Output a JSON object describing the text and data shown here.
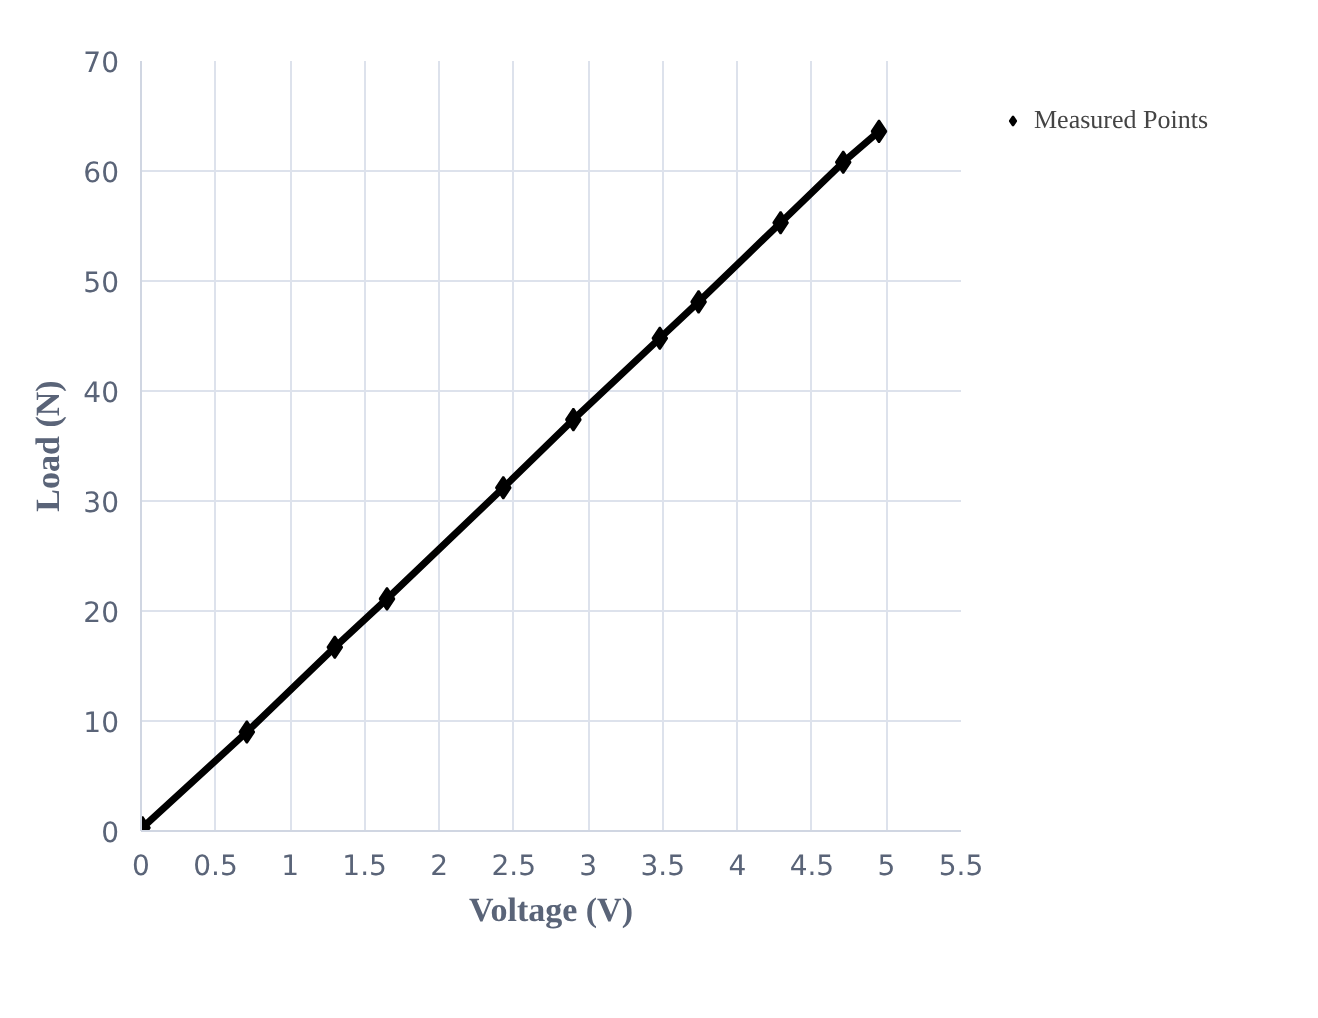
{
  "chart_data": {
    "type": "line",
    "xlabel": "Voltage (V)",
    "ylabel": "Load (N)",
    "x": [
      0.01,
      0.71,
      1.3,
      1.65,
      2.43,
      2.9,
      3.48,
      3.74,
      4.29,
      4.71,
      4.95
    ],
    "series": [
      {
        "name": "Measured Points",
        "color": "#000000",
        "values": [
          0.3,
          9.0,
          16.7,
          21.1,
          31.2,
          37.4,
          44.8,
          48.1,
          55.3,
          60.8,
          63.6
        ]
      }
    ],
    "xlim": [
      0,
      5.5
    ],
    "xticks": [
      0,
      0.5,
      1,
      1.5,
      2,
      2.5,
      3,
      3.5,
      4,
      4.5,
      5,
      5.5
    ],
    "ylim": [
      0,
      70
    ],
    "yticks": [
      0,
      10,
      20,
      30,
      40,
      50,
      60,
      70
    ],
    "grid": true,
    "legend": "right",
    "marker": "diamond",
    "line_style": "solid"
  }
}
